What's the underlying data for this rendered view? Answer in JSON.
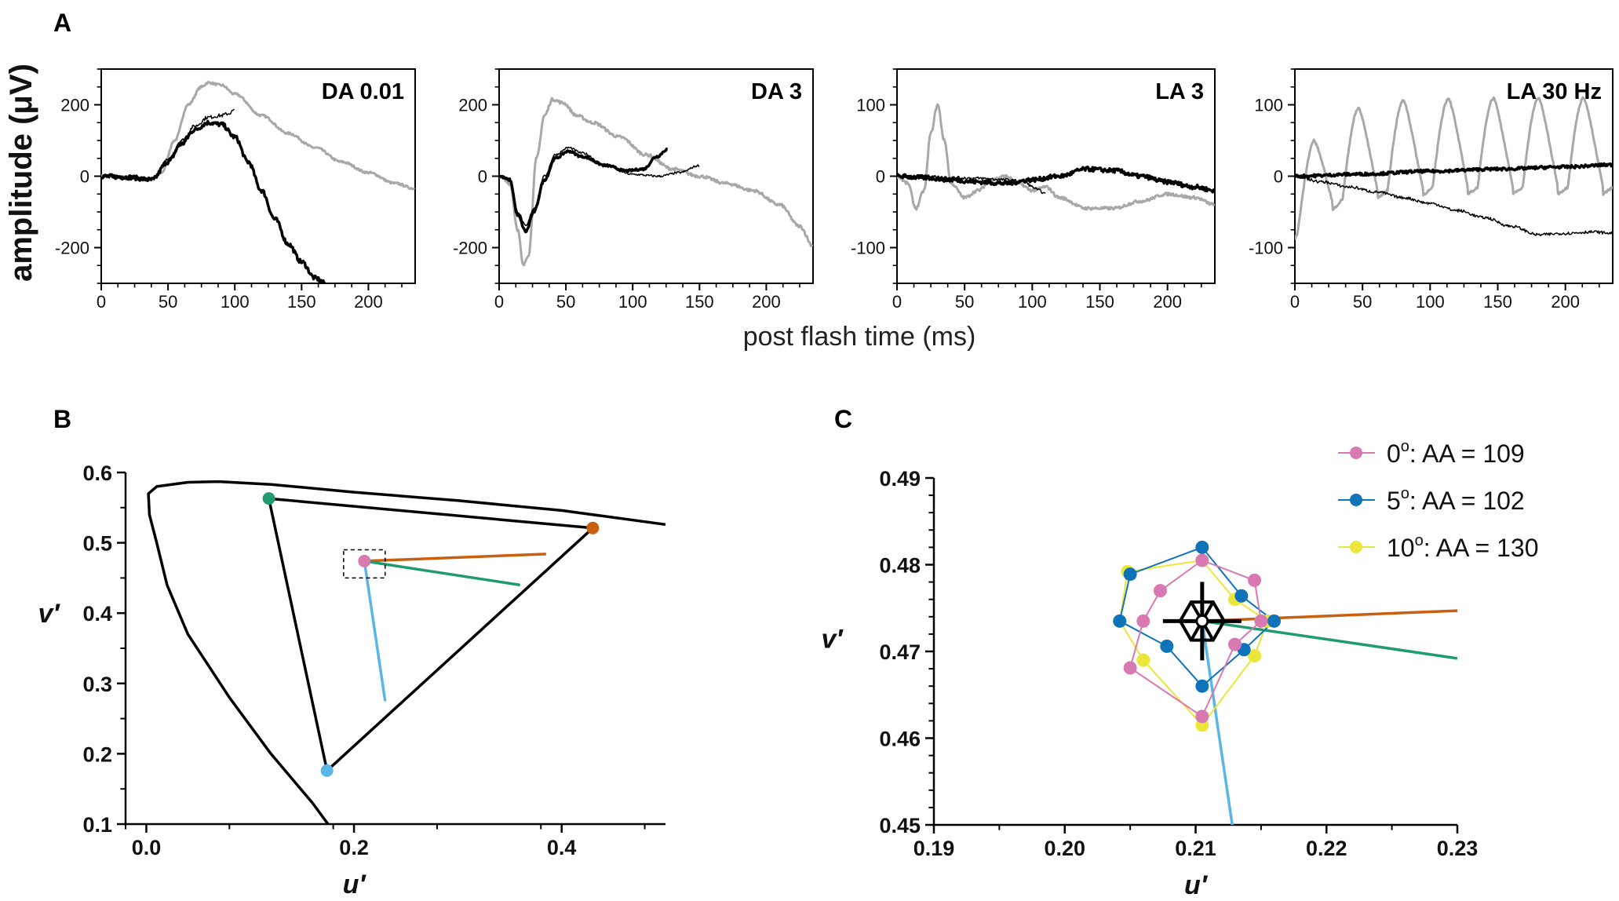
{
  "panel_labels": {
    "a": "A",
    "b": "B",
    "c": "C"
  },
  "colors": {
    "black": "#000000",
    "gray": "#a8a8a8",
    "orange": "#c8600f",
    "green": "#1f9b6d",
    "sky": "#5ab6e6",
    "pink": "#d87ab1",
    "blue": "#0e73b8",
    "yellow": "#ece53a"
  },
  "chart_data": [
    {
      "type": "line",
      "id": "da001",
      "title": "DA 0.01",
      "xlim": [
        0,
        235
      ],
      "ylim": [
        -300,
        300
      ],
      "xticks": [
        0,
        50,
        100,
        150,
        200
      ],
      "yticks": [
        -200,
        0,
        200
      ],
      "xtick_labels": [
        "0",
        "50",
        "100",
        "150",
        "200"
      ],
      "ytick_labels": [
        "-200",
        "0",
        "200"
      ],
      "series": [
        {
          "name": "gray",
          "color": "gray",
          "width": 3,
          "noise": 3,
          "x": [
            0,
            20,
            38,
            45,
            55,
            65,
            75,
            80,
            90,
            100,
            120,
            140,
            160,
            180,
            200,
            220,
            235
          ],
          "y": [
            0,
            -3,
            -10,
            10,
            100,
            200,
            250,
            262,
            255,
            230,
            170,
            120,
            80,
            40,
            10,
            -20,
            -35
          ]
        },
        {
          "name": "thick black",
          "color": "black",
          "width": 3.5,
          "noise": 6,
          "x": [
            0,
            20,
            38,
            50,
            60,
            70,
            80,
            90,
            100,
            110,
            120,
            130,
            140,
            150,
            160,
            168
          ],
          "y": [
            0,
            -3,
            -10,
            40,
            90,
            130,
            150,
            145,
            110,
            40,
            -40,
            -120,
            -190,
            -240,
            -285,
            -300
          ]
        },
        {
          "name": "thin black",
          "color": "black",
          "width": 1.5,
          "noise": 5,
          "x": [
            0,
            20,
            38,
            50,
            60,
            70,
            80,
            90,
            95,
            100
          ],
          "y": [
            0,
            -3,
            -10,
            45,
            100,
            140,
            165,
            170,
            175,
            185
          ]
        }
      ]
    },
    {
      "type": "line",
      "id": "da3",
      "title": "DA 3",
      "xlim": [
        0,
        235
      ],
      "ylim": [
        -300,
        300
      ],
      "xticks": [
        0,
        50,
        100,
        150,
        200
      ],
      "yticks": [
        -200,
        0,
        200
      ],
      "xtick_labels": [
        "0",
        "50",
        "100",
        "150",
        "200"
      ],
      "ytick_labels": [
        "-200",
        "0",
        "200"
      ],
      "series": [
        {
          "name": "gray",
          "color": "gray",
          "width": 3,
          "noise": 4,
          "x": [
            0,
            8,
            14,
            18,
            22,
            28,
            34,
            40,
            48,
            58,
            70,
            90,
            110,
            130,
            150,
            170,
            190,
            210,
            225,
            235
          ],
          "y": [
            0,
            -20,
            -150,
            -250,
            -220,
            50,
            170,
            215,
            205,
            170,
            150,
            110,
            60,
            20,
            0,
            -20,
            -40,
            -80,
            -140,
            -195
          ]
        },
        {
          "name": "thick black",
          "color": "black",
          "width": 3.5,
          "noise": 3,
          "x": [
            0,
            8,
            14,
            20,
            26,
            34,
            42,
            52,
            62,
            80,
            95,
            108,
            118,
            126
          ],
          "y": [
            0,
            -10,
            -110,
            -155,
            -100,
            -10,
            50,
            70,
            55,
            30,
            15,
            20,
            55,
            75
          ]
        },
        {
          "name": "thin black",
          "color": "black",
          "width": 1.5,
          "noise": 3,
          "x": [
            0,
            8,
            14,
            20,
            26,
            34,
            42,
            52,
            62,
            80,
            100,
            120,
            135,
            150
          ],
          "y": [
            0,
            -10,
            -100,
            -140,
            -90,
            0,
            60,
            80,
            65,
            30,
            5,
            0,
            10,
            30
          ]
        }
      ]
    },
    {
      "type": "line",
      "id": "la3",
      "title": "LA 3",
      "xlim": [
        0,
        235
      ],
      "ylim": [
        -150,
        150
      ],
      "xticks": [
        0,
        50,
        100,
        150,
        200
      ],
      "yticks": [
        -100,
        0,
        100
      ],
      "xtick_labels": [
        "0",
        "50",
        "100",
        "150",
        "200"
      ],
      "ytick_labels": [
        "-100",
        "0",
        "100"
      ],
      "series": [
        {
          "name": "gray",
          "color": "gray",
          "width": 3,
          "noise": 2,
          "x": [
            0,
            8,
            14,
            20,
            25,
            30,
            35,
            40,
            50,
            60,
            70,
            80,
            90,
            100,
            110,
            120,
            140,
            160,
            180,
            200,
            220,
            235
          ],
          "y": [
            0,
            -10,
            -45,
            -20,
            60,
            100,
            50,
            -10,
            -30,
            -20,
            -5,
            0,
            -10,
            -20,
            -15,
            -30,
            -45,
            -45,
            -35,
            -25,
            -30,
            -40
          ]
        },
        {
          "name": "thick black",
          "color": "black",
          "width": 3.5,
          "noise": 3,
          "x": [
            0,
            20,
            40,
            60,
            80,
            100,
            120,
            140,
            160,
            180,
            200,
            220,
            235
          ],
          "y": [
            0,
            -2,
            -5,
            -8,
            -10,
            -5,
            0,
            10,
            8,
            0,
            -8,
            -15,
            -20
          ]
        },
        {
          "name": "thin black",
          "color": "black",
          "width": 1.5,
          "noise": 2,
          "x": [
            0,
            20,
            40,
            60,
            80,
            95,
            100,
            105,
            110
          ],
          "y": [
            0,
            0,
            -2,
            -3,
            -5,
            -8,
            -15,
            -20,
            -25
          ]
        }
      ]
    },
    {
      "type": "line",
      "id": "la30",
      "title": "LA 30 Hz",
      "xlim": [
        0,
        235
      ],
      "ylim": [
        -150,
        150
      ],
      "xticks": [
        0,
        50,
        100,
        150,
        200
      ],
      "yticks": [
        -100,
        0,
        100
      ],
      "xtick_labels": [
        "0",
        "50",
        "100",
        "150",
        "200"
      ],
      "ytick_labels": [
        "-100",
        "0",
        "100"
      ],
      "series": [
        {
          "name": "gray",
          "color": "gray",
          "width": 3,
          "noise": 0,
          "generator": "flicker",
          "x": [],
          "y": []
        },
        {
          "name": "thick black",
          "color": "black",
          "width": 3.5,
          "noise": 2,
          "x": [
            0,
            50,
            100,
            150,
            200,
            235
          ],
          "y": [
            0,
            3,
            7,
            10,
            13,
            16
          ]
        },
        {
          "name": "thin black",
          "color": "black",
          "width": 1.5,
          "noise": 2,
          "x": [
            0,
            20,
            40,
            60,
            80,
            100,
            120,
            140,
            160,
            180,
            200,
            220,
            235
          ],
          "y": [
            0,
            -8,
            -15,
            -22,
            -30,
            -38,
            -48,
            -58,
            -70,
            -82,
            -80,
            -78,
            -80
          ]
        }
      ]
    },
    {
      "type": "line",
      "id": "chromaticity",
      "title": "",
      "xlim": [
        -0.02,
        0.5
      ],
      "ylim": [
        0.1,
        0.6
      ],
      "xticks": [
        0.0,
        0.2,
        0.4
      ],
      "yticks": [
        0.1,
        0.2,
        0.3,
        0.4,
        0.5,
        0.6
      ],
      "xtick_labels": [
        "0.0",
        "0.2",
        "0.4"
      ],
      "ytick_labels": [
        "0.1",
        "0.2",
        "0.3",
        "0.4",
        "0.5",
        "0.6"
      ],
      "xlabel": "u′",
      "ylabel": "v′",
      "locus": {
        "u": [
          0.175,
          0.16,
          0.12,
          0.08,
          0.04,
          0.02,
          0.01,
          0.003,
          0.002,
          0.01,
          0.04,
          0.07,
          0.12,
          0.2,
          0.3,
          0.4,
          0.5
        ],
        "v": [
          0.1,
          0.13,
          0.2,
          0.28,
          0.37,
          0.44,
          0.5,
          0.54,
          0.57,
          0.58,
          0.586,
          0.587,
          0.583,
          0.572,
          0.56,
          0.546,
          0.526
        ]
      },
      "primaries": {
        "u": [
          0.118,
          0.43,
          0.174
        ],
        "v": [
          0.563,
          0.521,
          0.176
        ],
        "colors": [
          "green",
          "orange",
          "sky"
        ]
      },
      "white_point": {
        "u": 0.21,
        "v": 0.474
      },
      "confusion_lines": [
        {
          "color": "orange",
          "u": [
            0.21,
            0.385
          ],
          "v": [
            0.474,
            0.484
          ]
        },
        {
          "color": "green",
          "u": [
            0.21,
            0.36
          ],
          "v": [
            0.474,
            0.44
          ]
        },
        {
          "color": "sky",
          "u": [
            0.21,
            0.23
          ],
          "v": [
            0.474,
            0.275
          ]
        }
      ],
      "zoom_box": {
        "u": [
          0.19,
          0.23
        ],
        "v": [
          0.45,
          0.49
        ]
      }
    },
    {
      "type": "scatter",
      "id": "zoom",
      "title": "",
      "xlim": [
        0.19,
        0.23
      ],
      "ylim": [
        0.45,
        0.49
      ],
      "xticks": [
        0.19,
        0.2,
        0.21,
        0.22,
        0.23
      ],
      "yticks": [
        0.45,
        0.46,
        0.47,
        0.48,
        0.49
      ],
      "xtick_labels": [
        "0.19",
        "0.20",
        "0.21",
        "0.22",
        "0.23"
      ],
      "ytick_labels": [
        "0.45",
        "0.46",
        "0.47",
        "0.48",
        "0.49"
      ],
      "xlabel": "u′",
      "ylabel": "v′",
      "center": {
        "u": 0.2105,
        "v": 0.4735
      },
      "series": [
        {
          "name": "0°: AA = 109",
          "legend_base": "0",
          "legend_sup": "o",
          "legend_rest": ": AA = 109",
          "color": "pink",
          "u": [
            0.2105,
            0.2145,
            0.215,
            0.213,
            0.2105,
            0.205,
            0.206,
            0.2073,
            0.2105
          ],
          "v": [
            0.4805,
            0.4782,
            0.4735,
            0.4708,
            0.4625,
            0.4681,
            0.4735,
            0.477,
            0.4805
          ]
        },
        {
          "name": "5°: AA = 102",
          "legend_base": "5",
          "legend_sup": "o",
          "legend_rest": ": AA = 102",
          "color": "blue",
          "u": [
            0.2105,
            0.2135,
            0.216,
            0.2137,
            0.2105,
            0.2078,
            0.2042,
            0.205,
            0.2105
          ],
          "v": [
            0.482,
            0.4764,
            0.4735,
            0.4702,
            0.466,
            0.4706,
            0.4735,
            0.4789,
            0.482
          ]
        },
        {
          "name": "10°: AA = 130",
          "legend_base": "10",
          "legend_sup": "o",
          "legend_rest": ": AA = 130",
          "color": "yellow",
          "u": [
            0.2105,
            0.213,
            0.2155,
            0.2145,
            0.2105,
            0.206,
            0.2042,
            0.2048,
            0.2105
          ],
          "v": [
            0.4805,
            0.476,
            0.4735,
            0.4695,
            0.4615,
            0.469,
            0.4735,
            0.4792,
            0.4805
          ]
        }
      ],
      "confusion_lines": [
        {
          "color": "orange",
          "u": [
            0.2105,
            0.23
          ],
          "v": [
            0.4735,
            0.4747
          ]
        },
        {
          "color": "green",
          "u": [
            0.2105,
            0.23
          ],
          "v": [
            0.4735,
            0.4692
          ]
        },
        {
          "color": "sky",
          "u": [
            0.2105,
            0.2128
          ],
          "v": [
            0.4735,
            0.45
          ]
        }
      ]
    }
  ],
  "axis_titles": {
    "amplitude": "amplitude (μV)",
    "post_flash": "post flash time (ms)"
  }
}
